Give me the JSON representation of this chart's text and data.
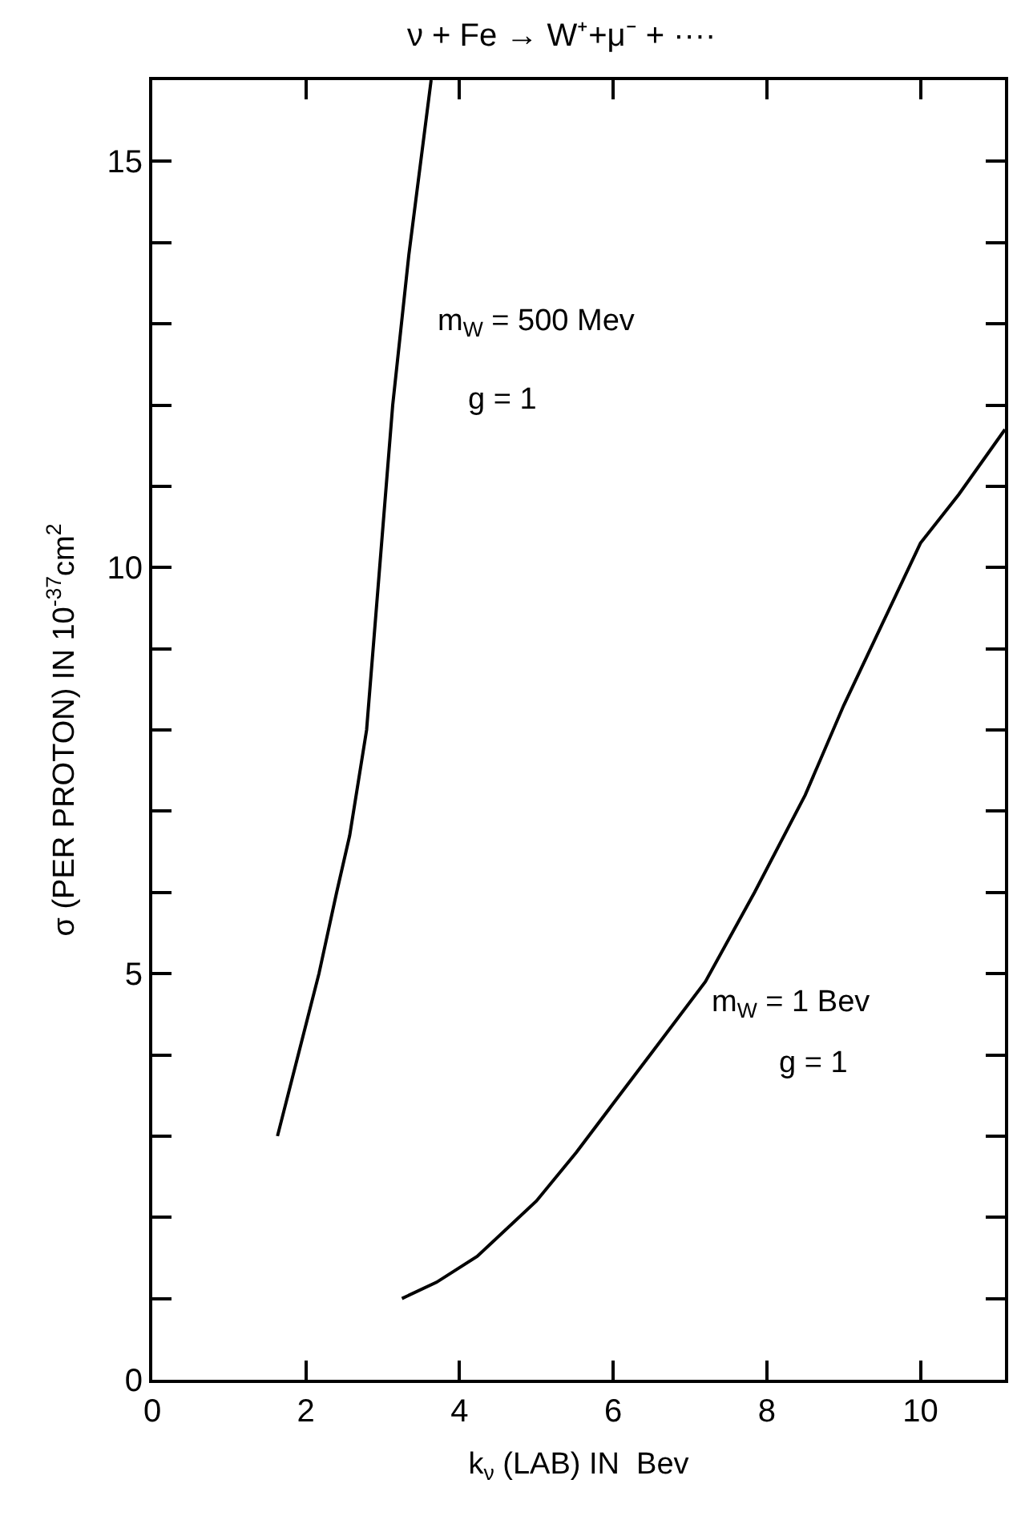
{
  "chart_data": {
    "type": "line",
    "title": "ν + Fe → W⁺+μ⁻ + ····",
    "xlabel": "k$_{ν}$ (LAB) IN  Bev",
    "ylabel": "σ (PER PROTON) IN 10$^{-37}$cm$^{2}$",
    "xlim": [
      0,
      11.1
    ],
    "xticks": [
      0,
      2,
      4,
      6,
      8,
      10
    ],
    "ylim": [
      0,
      16
    ],
    "yticks": [
      0,
      {
        "value": 1,
        "label": null
      },
      {
        "value": 2,
        "label": null
      },
      {
        "value": 3,
        "label": null
      },
      {
        "value": 4,
        "label": null
      },
      5,
      {
        "value": 6,
        "label": null
      },
      {
        "value": 7,
        "label": null
      },
      {
        "value": 8,
        "label": null
      },
      {
        "value": 9,
        "label": null
      },
      10,
      {
        "value": 11,
        "label": null
      },
      {
        "value": 12,
        "label": null
      },
      {
        "value": 13,
        "label": null
      },
      {
        "value": 14,
        "label": null
      },
      15
    ],
    "marker": "none",
    "line_style": "solid",
    "series": [
      {
        "color": "#000000",
        "x": [
          1.63,
          1.9,
          2.17,
          2.4,
          2.57,
          2.79,
          2.96,
          3.13,
          3.34,
          3.63
        ],
        "values": [
          3.0,
          4.0,
          5.0,
          6.0,
          6.7,
          8.0,
          10.0,
          12.0,
          13.85,
          16.0
        ]
      },
      {
        "color": "#000000",
        "x": [
          3.25,
          3.7,
          4.23,
          5.0,
          5.52,
          6.0,
          6.52,
          7.2,
          7.84,
          8.5,
          9.0,
          9.5,
          10.0,
          10.5,
          11.1
        ],
        "values": [
          1.0,
          1.2,
          1.52,
          2.2,
          2.8,
          3.4,
          4.05,
          4.9,
          6.0,
          7.2,
          8.3,
          9.3,
          10.3,
          10.9,
          11.7
        ]
      }
    ],
    "annotations": [
      "m$_{W}$ = 500 Mev",
      "g = 1",
      "m$_{W}$ = 1 Bev",
      "g = 1"
    ]
  }
}
